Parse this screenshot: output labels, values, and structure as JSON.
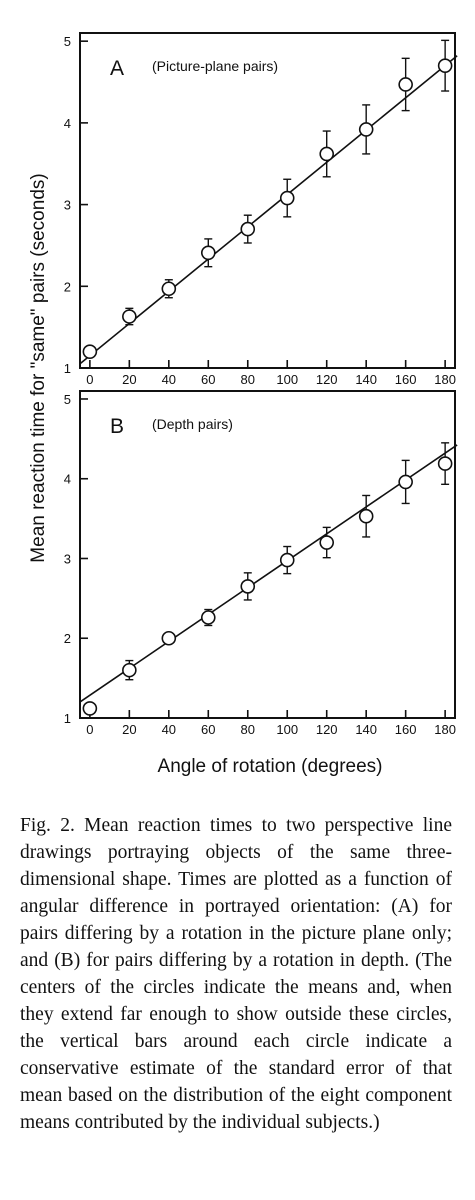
{
  "chart_data": [
    {
      "type": "scatter",
      "panel": "A",
      "title": "(Picture-plane pairs)",
      "x": [
        0,
        20,
        40,
        60,
        80,
        100,
        120,
        140,
        160,
        180
      ],
      "y": [
        1.2,
        1.63,
        1.97,
        2.41,
        2.7,
        3.08,
        3.62,
        3.92,
        4.47,
        4.7
      ],
      "error": [
        0.06,
        0.1,
        0.11,
        0.17,
        0.17,
        0.23,
        0.28,
        0.3,
        0.32,
        0.31
      ],
      "fit_line": {
        "x": [
          0,
          180
        ],
        "y": [
          1.05,
          4.7
        ]
      },
      "x_ticks": [
        0,
        20,
        40,
        60,
        80,
        100,
        120,
        140,
        160,
        180
      ],
      "y_ticks": [
        1,
        2,
        3,
        4,
        5
      ],
      "xlim": [
        -5,
        185
      ],
      "ylim": [
        1,
        5.1
      ]
    },
    {
      "type": "scatter",
      "panel": "B",
      "title": "(Depth pairs)",
      "x": [
        0,
        20,
        40,
        60,
        80,
        100,
        120,
        140,
        160,
        180
      ],
      "y": [
        1.12,
        1.6,
        2.0,
        2.26,
        2.65,
        2.98,
        3.2,
        3.53,
        3.96,
        4.19
      ],
      "error": [
        0.02,
        0.12,
        0.06,
        0.1,
        0.17,
        0.17,
        0.19,
        0.26,
        0.27,
        0.26
      ],
      "fit_line": {
        "x": [
          0,
          180
        ],
        "y": [
          1.2,
          4.32
        ]
      },
      "x_ticks": [
        0,
        20,
        40,
        60,
        80,
        100,
        120,
        140,
        160,
        180
      ],
      "y_ticks": [
        1,
        2,
        3,
        4,
        5
      ],
      "xlim": [
        -5,
        185
      ],
      "ylim": [
        1,
        5.1
      ]
    }
  ],
  "labels": {
    "ylabel": "Mean reaction time for \"same\" pairs (seconds)",
    "xlabel": "Angle of rotation (degrees)"
  },
  "caption": "Fig. 2. Mean reaction times to two perspective line drawings portraying objects of the same three-dimensional shape. Times are plotted as a function of angular difference in portrayed orientation: (A) for pairs differing by a rotation in the picture plane only; and (B) for pairs differing by a rotation in depth. (The centers of the circles indicate the means and, when they extend far enough to show outside these circles, the vertical bars around each circle indicate a conservative estimate of the standard error of that mean based on the distribution of the eight component means contributed by the individual subjects.)"
}
